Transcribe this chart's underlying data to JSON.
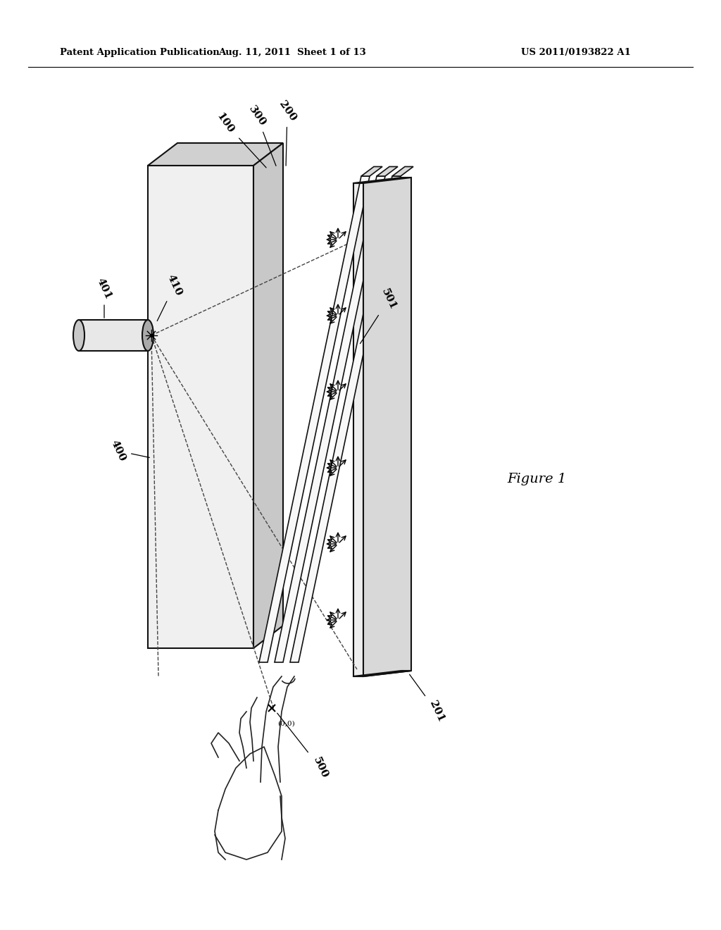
{
  "background_color": "#ffffff",
  "header_left": "Patent Application Publication",
  "header_center": "Aug. 11, 2011  Sheet 1 of 13",
  "header_right": "US 2011/0193822 A1",
  "figure_label": "Figure 1"
}
